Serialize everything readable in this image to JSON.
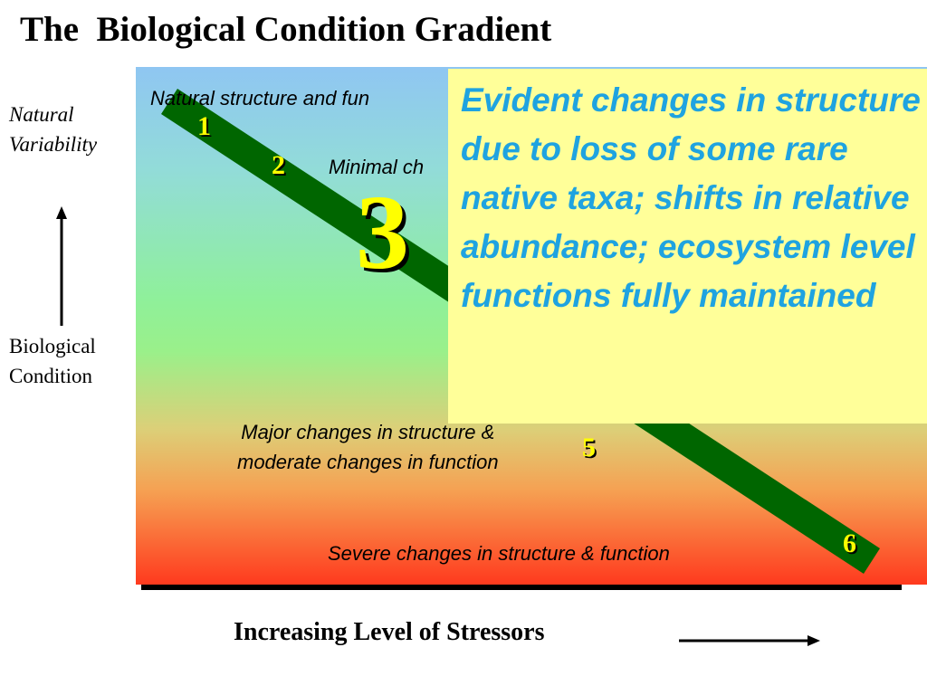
{
  "slide": {
    "title": "The  Biological Condition Gradient"
  },
  "y_axis": {
    "top_label": "Natural\nVariability",
    "bottom_label": "Biological\nCondition"
  },
  "x_axis": {
    "label": "Increasing Level of Stressors"
  },
  "stages": {
    "s1_text": "Natural structure and fun",
    "s2_text": "Minimal ch",
    "s5_text": "Major changes in structure &\nmoderate changes in function",
    "s6_text": "Severe changes in structure & function"
  },
  "levels": [
    "1",
    "2",
    "3",
    "5",
    "6"
  ],
  "callout": {
    "text": "Evident changes in structure due to loss of some rare native taxa; shifts in relative abundance; ecosystem level functions fully maintained"
  },
  "colors": {
    "band": "#006600",
    "level_numbers": "#ffff00",
    "callout_bg": "#ffff99",
    "callout_text": "#1fa3e0",
    "gradient_top": "#8fc6f2",
    "gradient_bottom": "#ff3a1e"
  }
}
